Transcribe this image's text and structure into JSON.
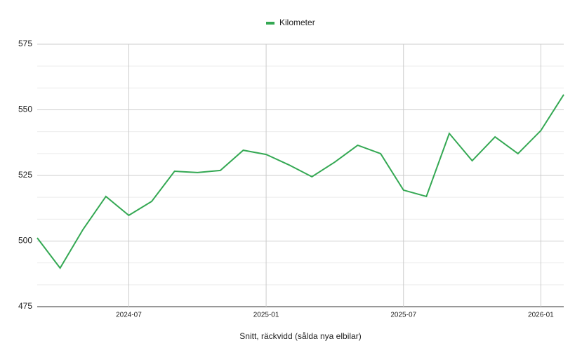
{
  "chart_data": {
    "type": "line",
    "x_label": "Snitt, räckvidd (sålda nya elbilar)",
    "x": [
      "2024-03",
      "2024-04",
      "2024-05",
      "2024-06",
      "2024-07",
      "2024-08",
      "2024-09",
      "2024-10",
      "2024-11",
      "2024-12",
      "2025-01",
      "2025-02",
      "2025-03",
      "2025-04",
      "2025-05",
      "2025-06",
      "2025-07",
      "2025-08",
      "2025-09",
      "2025-10",
      "2025-11",
      "2025-12",
      "2026-01",
      "2026-02"
    ],
    "series": [
      {
        "name": "Kilometer",
        "color": "#34a853",
        "values": [
          501.2,
          489.7,
          504.4,
          517.0,
          509.8,
          515.1,
          526.6,
          526.1,
          526.9,
          534.6,
          533.0,
          529.0,
          524.5,
          530.1,
          536.5,
          533.3,
          519.4,
          517.0,
          541.0,
          530.6,
          539.7,
          533.3,
          542.1,
          555.8
        ]
      }
    ],
    "xlim": [
      "2024-03",
      "2026-02"
    ],
    "xticks": [
      "2024-07",
      "2025-01",
      "2025-07",
      "2026-01"
    ],
    "ylim": [
      475,
      575
    ],
    "yticks": [
      475,
      500,
      525,
      550,
      575
    ],
    "grid": true,
    "legend": "top"
  }
}
